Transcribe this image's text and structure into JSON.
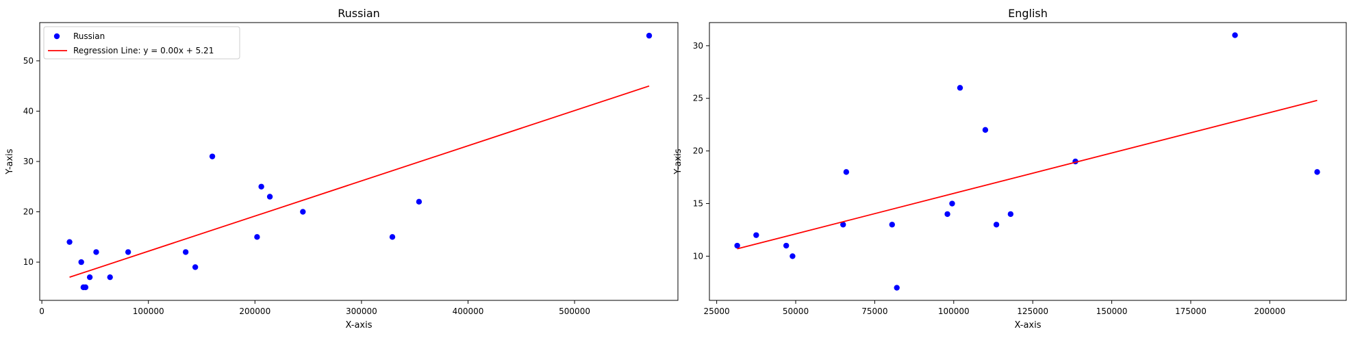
{
  "chart_data": [
    {
      "type": "scatter",
      "title": "Russian",
      "xlabel": "X-axis",
      "ylabel": "Y-axis",
      "xlim": [
        -2000,
        597000
      ],
      "ylim": [
        2.4,
        57.6
      ],
      "xticks": [
        0,
        100000,
        200000,
        300000,
        400000,
        500000
      ],
      "xtick_labels": [
        "0",
        "100000",
        "200000",
        "300000",
        "400000",
        "500000"
      ],
      "yticks": [
        10,
        20,
        30,
        40,
        50
      ],
      "ytick_labels": [
        "10",
        "20",
        "30",
        "40",
        "50"
      ],
      "grid": false,
      "legend": {
        "placement": "top-left",
        "entries": [
          {
            "label": "Russian",
            "kind": "marker",
            "color": "#0000ff"
          },
          {
            "label": "Regression Line: y = 0.00x + 5.21",
            "kind": "line",
            "color": "#ff0000"
          }
        ]
      },
      "series": [
        {
          "name": "Russian",
          "kind": "scatter",
          "color": "#0000ff",
          "points": [
            [
              26000,
              14
            ],
            [
              37000,
              10
            ],
            [
              39000,
              5
            ],
            [
              41000,
              5
            ],
            [
              45000,
              7
            ],
            [
              51000,
              12
            ],
            [
              64000,
              7
            ],
            [
              81000,
              12
            ],
            [
              135000,
              12
            ],
            [
              144000,
              9
            ],
            [
              160000,
              31
            ],
            [
              202000,
              15
            ],
            [
              206000,
              25
            ],
            [
              214000,
              23
            ],
            [
              245000,
              20
            ],
            [
              329000,
              15
            ],
            [
              354000,
              22
            ],
            [
              570000,
              55
            ]
          ]
        },
        {
          "name": "Regression Line: y = 0.00x + 5.21",
          "kind": "line",
          "color": "#ff0000",
          "points": [
            [
              26000,
              7.0
            ],
            [
              570000,
              45.0
            ]
          ]
        }
      ]
    },
    {
      "type": "scatter",
      "title": "English",
      "xlabel": "X-axis",
      "ylabel": "Y-axis",
      "xlim": [
        22700,
        224200
      ],
      "ylim": [
        5.8,
        32.2
      ],
      "xticks": [
        25000,
        50000,
        75000,
        100000,
        125000,
        150000,
        175000,
        200000
      ],
      "xtick_labels": [
        "25000",
        "50000",
        "75000",
        "100000",
        "125000",
        "150000",
        "175000",
        "200000"
      ],
      "yticks": [
        10,
        15,
        20,
        25,
        30
      ],
      "ytick_labels": [
        "10",
        "15",
        "20",
        "25",
        "30"
      ],
      "grid": false,
      "series": [
        {
          "name": "",
          "kind": "scatter",
          "color": "#0000ff",
          "points": [
            [
              31500,
              11
            ],
            [
              37500,
              12
            ],
            [
              47000,
              11
            ],
            [
              49000,
              10
            ],
            [
              65000,
              13
            ],
            [
              66000,
              18
            ],
            [
              80500,
              13
            ],
            [
              82000,
              7
            ],
            [
              98000,
              14
            ],
            [
              99500,
              15
            ],
            [
              102000,
              26
            ],
            [
              110000,
              22
            ],
            [
              113500,
              13
            ],
            [
              118000,
              14
            ],
            [
              138500,
              19
            ],
            [
              189000,
              31
            ],
            [
              215000,
              18
            ]
          ]
        },
        {
          "name": "",
          "kind": "line",
          "color": "#ff0000",
          "points": [
            [
              31500,
              10.7
            ],
            [
              215000,
              24.8
            ]
          ]
        }
      ]
    }
  ]
}
